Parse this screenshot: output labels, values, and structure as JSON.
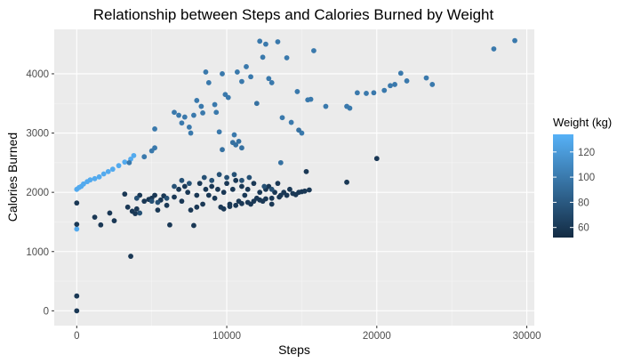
{
  "chart_data": {
    "type": "scatter",
    "title": "Relationship between Steps and Calories Burned by Weight",
    "xlabel": "Steps",
    "ylabel": "Calories Burned",
    "xlim": [
      -1500,
      30500
    ],
    "ylim": [
      -250,
      4750
    ],
    "x_ticks": [
      0,
      10000,
      20000,
      30000
    ],
    "y_ticks": [
      0,
      1000,
      2000,
      3000,
      4000
    ],
    "grid": true,
    "background": "#ebebeb",
    "legend": {
      "title": "Weight (kg)",
      "placement": "right",
      "ticks": [
        60,
        80,
        100,
        120
      ],
      "range": [
        52,
        134
      ],
      "color_low": "#132b43",
      "color_high": "#56b1f7"
    },
    "points": [
      [
        0,
        0,
        60
      ],
      [
        0,
        250,
        60
      ],
      [
        0,
        1380,
        130
      ],
      [
        0,
        1460,
        60
      ],
      [
        0,
        1820,
        60
      ],
      [
        0,
        2050,
        130
      ],
      [
        150,
        2080,
        130
      ],
      [
        300,
        2100,
        130
      ],
      [
        450,
        2140,
        130
      ],
      [
        700,
        2180,
        130
      ],
      [
        900,
        2210,
        130
      ],
      [
        1200,
        2230,
        130
      ],
      [
        1500,
        2260,
        130
      ],
      [
        1800,
        2310,
        130
      ],
      [
        2100,
        2350,
        130
      ],
      [
        2400,
        2390,
        130
      ],
      [
        2800,
        2450,
        130
      ],
      [
        3200,
        2510,
        130
      ],
      [
        3600,
        2560,
        130
      ],
      [
        3800,
        2620,
        130
      ],
      [
        1200,
        1580,
        60
      ],
      [
        1600,
        1450,
        60
      ],
      [
        2200,
        1650,
        60
      ],
      [
        2500,
        1520,
        60
      ],
      [
        3200,
        1970,
        60
      ],
      [
        3400,
        1750,
        60
      ],
      [
        3600,
        920,
        60
      ],
      [
        3700,
        1680,
        60
      ],
      [
        3900,
        1640,
        60
      ],
      [
        4000,
        1720,
        60
      ],
      [
        4200,
        1950,
        60
      ],
      [
        4500,
        1850,
        60
      ],
      [
        4800,
        1880,
        60
      ],
      [
        5000,
        1900,
        60
      ],
      [
        5200,
        1950,
        60
      ],
      [
        5400,
        1700,
        60
      ],
      [
        5600,
        1870,
        60
      ],
      [
        5800,
        1940,
        60
      ],
      [
        6000,
        1780,
        60
      ],
      [
        6200,
        1450,
        60
      ],
      [
        6500,
        1920,
        60
      ],
      [
        6800,
        2050,
        60
      ],
      [
        7000,
        1850,
        60
      ],
      [
        7200,
        2100,
        60
      ],
      [
        7400,
        2000,
        60
      ],
      [
        7600,
        1700,
        60
      ],
      [
        7800,
        1440,
        60
      ],
      [
        8000,
        1950,
        60
      ],
      [
        8200,
        2150,
        60
      ],
      [
        8400,
        1800,
        60
      ],
      [
        8600,
        2050,
        60
      ],
      [
        8800,
        1950,
        60
      ],
      [
        9000,
        2100,
        60
      ],
      [
        9200,
        1900,
        60
      ],
      [
        9400,
        2050,
        60
      ],
      [
        9600,
        1750,
        60
      ],
      [
        9800,
        2000,
        60
      ],
      [
        10000,
        2150,
        60
      ],
      [
        10200,
        1800,
        60
      ],
      [
        10400,
        2050,
        60
      ],
      [
        10600,
        2200,
        60
      ],
      [
        10800,
        1850,
        60
      ],
      [
        11000,
        2100,
        60
      ],
      [
        11200,
        1950,
        60
      ],
      [
        11400,
        2050,
        60
      ],
      [
        11600,
        1800,
        60
      ],
      [
        11800,
        2150,
        60
      ],
      [
        12000,
        1900,
        60
      ],
      [
        12200,
        2000,
        60
      ],
      [
        12400,
        1850,
        60
      ],
      [
        12600,
        2050,
        60
      ],
      [
        12800,
        2100,
        60
      ],
      [
        13000,
        1800,
        60
      ],
      [
        13200,
        2000,
        60
      ],
      [
        13400,
        2150,
        60
      ],
      [
        13600,
        1950,
        60
      ],
      [
        13800,
        2000,
        60
      ],
      [
        14000,
        1950,
        60
      ],
      [
        14200,
        2050,
        60
      ],
      [
        14400,
        1980,
        60
      ],
      [
        14600,
        1960,
        60
      ],
      [
        14800,
        2000,
        60
      ],
      [
        15000,
        2010,
        60
      ],
      [
        15200,
        2020,
        60
      ],
      [
        15500,
        2040,
        60
      ],
      [
        15300,
        2350,
        60
      ],
      [
        18000,
        2170,
        60
      ],
      [
        20000,
        2570,
        60
      ],
      [
        7000,
        2200,
        75
      ],
      [
        8500,
        2250,
        75
      ],
      [
        9500,
        2300,
        75
      ],
      [
        10000,
        2250,
        75
      ],
      [
        10500,
        2300,
        75
      ],
      [
        11000,
        2200,
        75
      ],
      [
        7500,
        2150,
        75
      ],
      [
        9000,
        2200,
        75
      ],
      [
        6500,
        2100,
        75
      ],
      [
        11500,
        2250,
        75
      ],
      [
        12500,
        2100,
        75
      ],
      [
        13000,
        2050,
        75
      ],
      [
        8000,
        1750,
        60
      ],
      [
        9800,
        1720,
        60
      ],
      [
        10200,
        1760,
        60
      ],
      [
        10600,
        1780,
        60
      ],
      [
        11000,
        1810,
        60
      ],
      [
        11400,
        1830,
        60
      ],
      [
        11800,
        1850,
        60
      ],
      [
        12200,
        1870,
        60
      ],
      [
        12600,
        1890,
        60
      ],
      [
        13000,
        1900,
        60
      ],
      [
        13500,
        1920,
        60
      ],
      [
        14000,
        1950,
        60
      ],
      [
        4000,
        1900,
        75
      ],
      [
        5000,
        1850,
        75
      ],
      [
        5400,
        1830,
        75
      ],
      [
        6000,
        1900,
        75
      ],
      [
        4200,
        1650,
        75
      ],
      [
        3500,
        2500,
        100
      ],
      [
        4500,
        2600,
        100
      ],
      [
        5000,
        2700,
        100
      ],
      [
        5200,
        2750,
        100
      ],
      [
        5200,
        3070,
        100
      ],
      [
        6500,
        3350,
        100
      ],
      [
        6800,
        3300,
        100
      ],
      [
        7000,
        3170,
        100
      ],
      [
        7200,
        3270,
        100
      ],
      [
        7500,
        3100,
        100
      ],
      [
        7600,
        3000,
        100
      ],
      [
        7800,
        3300,
        100
      ],
      [
        8000,
        3550,
        100
      ],
      [
        8300,
        3450,
        100
      ],
      [
        8400,
        3340,
        100
      ],
      [
        8600,
        4030,
        100
      ],
      [
        8800,
        3850,
        100
      ],
      [
        9200,
        3480,
        100
      ],
      [
        9300,
        3350,
        100
      ],
      [
        9500,
        3020,
        100
      ],
      [
        9700,
        4000,
        100
      ],
      [
        9900,
        3650,
        100
      ],
      [
        10100,
        3600,
        100
      ],
      [
        10500,
        2970,
        100
      ],
      [
        10700,
        4030,
        100
      ],
      [
        11000,
        3870,
        100
      ],
      [
        11300,
        4120,
        100
      ],
      [
        11600,
        3950,
        100
      ],
      [
        12200,
        4550,
        100
      ],
      [
        12400,
        4280,
        100
      ],
      [
        12600,
        4500,
        100
      ],
      [
        12800,
        3920,
        100
      ],
      [
        13000,
        3850,
        100
      ],
      [
        13400,
        4540,
        100
      ],
      [
        13700,
        3260,
        100
      ],
      [
        14000,
        4270,
        100
      ],
      [
        14300,
        3180,
        100
      ],
      [
        14700,
        3700,
        100
      ],
      [
        15000,
        3000,
        100
      ],
      [
        15400,
        3560,
        100
      ],
      [
        15600,
        3570,
        100
      ],
      [
        15800,
        4390,
        100
      ],
      [
        16600,
        3450,
        100
      ],
      [
        18000,
        3450,
        100
      ],
      [
        18200,
        3420,
        100
      ],
      [
        18700,
        3680,
        100
      ],
      [
        19300,
        3670,
        100
      ],
      [
        19800,
        3680,
        100
      ],
      [
        20500,
        3720,
        100
      ],
      [
        20900,
        3800,
        100
      ],
      [
        21200,
        3820,
        100
      ],
      [
        21600,
        4010,
        100
      ],
      [
        22000,
        3880,
        100
      ],
      [
        23300,
        3930,
        100
      ],
      [
        23700,
        3820,
        100
      ],
      [
        27800,
        4420,
        100
      ],
      [
        29200,
        4560,
        100
      ],
      [
        9700,
        2720,
        95
      ],
      [
        10400,
        2840,
        95
      ],
      [
        10600,
        2800,
        95
      ],
      [
        10800,
        2860,
        95
      ],
      [
        11000,
        2750,
        95
      ],
      [
        12000,
        3500,
        95
      ],
      [
        13600,
        2500,
        95
      ],
      [
        14800,
        3050,
        95
      ]
    ]
  }
}
